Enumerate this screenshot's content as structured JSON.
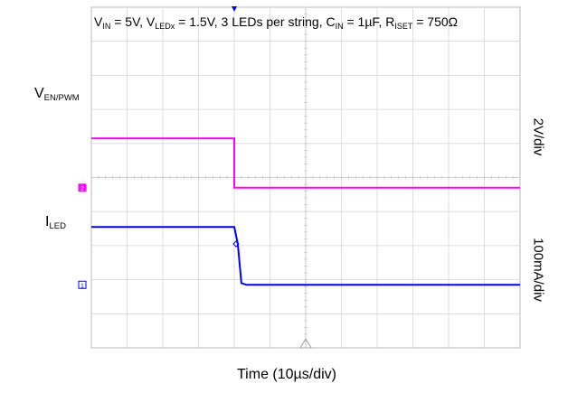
{
  "chart_data": {
    "type": "line",
    "title_parts": {
      "vin_sym": "V",
      "vin_sub": "IN",
      "vin_val": " = 5V, ",
      "vled_sym": "V",
      "vled_sub": "LEDx",
      "vled_val": " = 1.5V, 3 LEDs per string, ",
      "cin_sym": "C",
      "cin_sub": "IN",
      "cin_val": " = 1µF, ",
      "riset_sym": "R",
      "riset_sub": "ISET",
      "riset_val": " = 750Ω"
    },
    "xlabel": "Time (10µs/div)",
    "x_divisions": 12,
    "y_divisions": 10,
    "channels": [
      {
        "label_sym": "V",
        "label_sub": "EN/PWM",
        "scale": "2V/div",
        "color": "#ff00ff",
        "marker": "2",
        "points": [
          [
            0,
            1.45
          ],
          [
            4.0,
            1.45
          ],
          [
            4.0,
            0.0
          ],
          [
            12,
            0.0
          ]
        ]
      },
      {
        "label_sym": "I",
        "label_sub": "LED",
        "scale": "100mA/div",
        "color": "#0000ff",
        "marker": "1",
        "points": [
          [
            0,
            1.7
          ],
          [
            4.0,
            1.7
          ],
          [
            4.1,
            1.2
          ],
          [
            4.2,
            0.05
          ],
          [
            4.35,
            0.0
          ],
          [
            12,
            0.0
          ]
        ]
      }
    ],
    "grid": true,
    "trigger_color": "#0000ff"
  }
}
